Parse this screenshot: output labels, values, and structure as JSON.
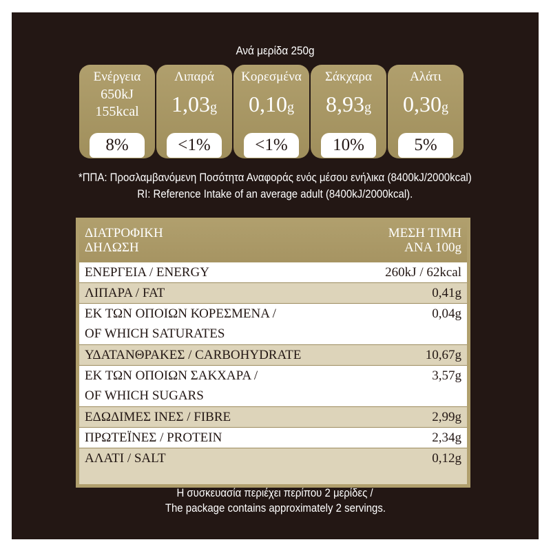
{
  "header": {
    "per_serving": "Ανά μερίδα 250g"
  },
  "gda": [
    {
      "name": "Ενέργεια",
      "line1": "650kJ",
      "line2": "155kcal",
      "percent": "8%"
    },
    {
      "name": "Λιπαρά",
      "amount": "1,03",
      "unit": "g",
      "percent": "<1%"
    },
    {
      "name": "Κορεσμένα",
      "amount": "0,10",
      "unit": "g",
      "percent": "<1%"
    },
    {
      "name": "Σάκχαρα",
      "amount": "8,93",
      "unit": "g",
      "percent": "10%"
    },
    {
      "name": "Αλάτι",
      "amount": "0,30",
      "unit": "g",
      "percent": "5%"
    }
  ],
  "ri_note": {
    "greek": "*ΠΠΑ: Προσλαμβανόμενη Ποσότητα Αναφοράς ενός μέσου ενήλικα (8400kJ/2000kcal)",
    "english": "RI: Reference Intake of an average adult (8400kJ/2000kcal)."
  },
  "table": {
    "header_left_1": "ΔΙΑΤΡΟΦΙΚΗ",
    "header_left_2": "ΔΗΛΩΣΗ",
    "header_right_1": "ΜΕΣΗ ΤΙΜΗ",
    "header_right_2": "ΑΝΑ 100g",
    "rows": [
      {
        "label": "ΕΝΕΡΓΕΙΑ / ENERGY",
        "value": "260kJ / 62kcal"
      },
      {
        "label": "ΛΙΠΑΡΑ / FAT",
        "value": "0,41g"
      },
      {
        "label": "ΕΚ ΤΩΝ ΟΠΟΙΩΝ ΚΟΡΕΣΜΕΝΑ /",
        "label2": "OF WHICH SATURATES",
        "value": "0,04g"
      },
      {
        "label": "ΥΔΑΤΑΝΘΡΑΚΕΣ / CARBOHYDRATE",
        "value": "10,67g"
      },
      {
        "label": "ΕΚ ΤΩΝ ΟΠΟΙΩΝ ΣΑΚΧΑΡΑ /",
        "label2": "OF WHICH SUGARS",
        "value": "3,57g"
      },
      {
        "label": "ΕΔΩΔΙΜΕΣ ΙΝΕΣ / FIBRE",
        "value": "2,99g"
      },
      {
        "label": "ΠΡΩΤΕΪΝΕΣ / PROTEIN",
        "value": "2,34g"
      },
      {
        "label": "ΑΛΑΤΙ / SALT",
        "value": "0,12g"
      }
    ]
  },
  "footer": {
    "greek": "Η συσκευασία περιέχει περίπου 2 μερίδες /",
    "english": "The package contains approximately 2 servings."
  },
  "colors": {
    "background": "#231714",
    "gold": "#b09f6d",
    "tan_row": "#ddd4ba",
    "white": "#ffffff"
  }
}
